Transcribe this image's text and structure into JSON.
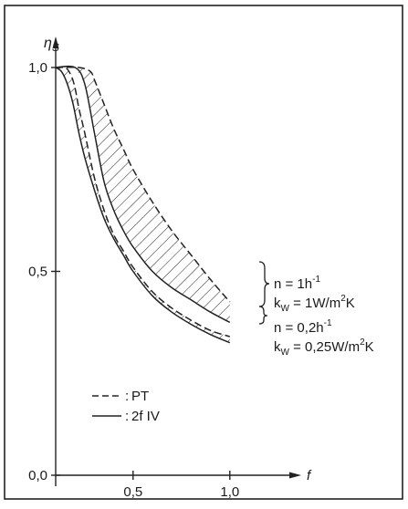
{
  "chart_data": {
    "type": "line",
    "title": "",
    "xlabel": "f",
    "ylabel": "η_S",
    "ylabel_main": "η",
    "ylabel_sub": "S",
    "xlim": [
      0.0,
      1.2
    ],
    "ylim": [
      0.0,
      1.0
    ],
    "x_ticks": [
      0.5,
      1.0
    ],
    "x_tick_labels": [
      "0,5",
      "1,0"
    ],
    "y_ticks": [
      0.0,
      0.5,
      1.0
    ],
    "y_tick_labels": [
      "0,0",
      "0,5",
      "1,0"
    ],
    "grid": false,
    "legend_position": "lower-left",
    "legend": [
      {
        "label": "PT",
        "style": "dashed"
      },
      {
        "label": "2f IV",
        "style": "solid"
      }
    ],
    "series": [
      {
        "label": "n = 1h⁻¹, k_W = 1 W/m²K",
        "style": "dashed",
        "x": [
          0.1,
          0.22,
          0.28,
          0.3,
          0.35,
          0.4,
          0.45,
          0.5,
          0.6,
          0.7,
          0.8,
          0.9,
          1.0
        ],
        "y": [
          1.0,
          1.0,
          0.99,
          0.97,
          0.91,
          0.85,
          0.8,
          0.75,
          0.67,
          0.6,
          0.54,
          0.48,
          0.425
        ]
      },
      {
        "label": "n = 1h⁻¹, k_W = 1 W/m²K",
        "style": "solid",
        "x": [
          0.1,
          0.2,
          0.25,
          0.3,
          0.35,
          0.4,
          0.45,
          0.5,
          0.6,
          0.7,
          0.8,
          0.9,
          1.0
        ],
        "y": [
          1.0,
          1.0,
          0.96,
          0.84,
          0.72,
          0.65,
          0.6,
          0.56,
          0.5,
          0.46,
          0.43,
          0.4,
          0.375
        ]
      },
      {
        "label": "n = 0,2h⁻¹, k_W = 0,25 W/m²K",
        "style": "dashed",
        "x": [
          0.1,
          0.15,
          0.18,
          0.2,
          0.22,
          0.25,
          0.3,
          0.35,
          0.4,
          0.45,
          0.5,
          0.6,
          0.7,
          0.8,
          0.9,
          1.0
        ],
        "y": [
          1.0,
          1.0,
          0.98,
          0.95,
          0.9,
          0.84,
          0.73,
          0.65,
          0.59,
          0.55,
          0.51,
          0.45,
          0.41,
          0.38,
          0.355,
          0.34
        ]
      },
      {
        "label": "n = 0,2h⁻¹, k_W = 0,25 W/m²K",
        "style": "solid",
        "x": [
          0.1,
          0.13,
          0.16,
          0.19,
          0.22,
          0.25,
          0.3,
          0.35,
          0.4,
          0.45,
          0.5,
          0.6,
          0.7,
          0.8,
          0.9,
          1.0
        ],
        "y": [
          1.0,
          0.99,
          0.96,
          0.91,
          0.84,
          0.78,
          0.7,
          0.63,
          0.58,
          0.54,
          0.5,
          0.44,
          0.4,
          0.37,
          0.345,
          0.325
        ]
      }
    ],
    "annotations": [
      {
        "id": "a1",
        "lines": [
          {
            "base": "n = 1h",
            "sup": "-1"
          },
          {
            "base": "k",
            "sub": "W",
            "rest": " = 1W/m",
            "sup": "2",
            "tail": "K"
          }
        ]
      },
      {
        "id": "a2",
        "lines": [
          {
            "base": "n = 0,2h",
            "sup": "-1"
          },
          {
            "base": "k",
            "sub": "W",
            "rest": " = 0,25W/m",
            "sup": "2",
            "tail": "K"
          }
        ]
      }
    ]
  }
}
